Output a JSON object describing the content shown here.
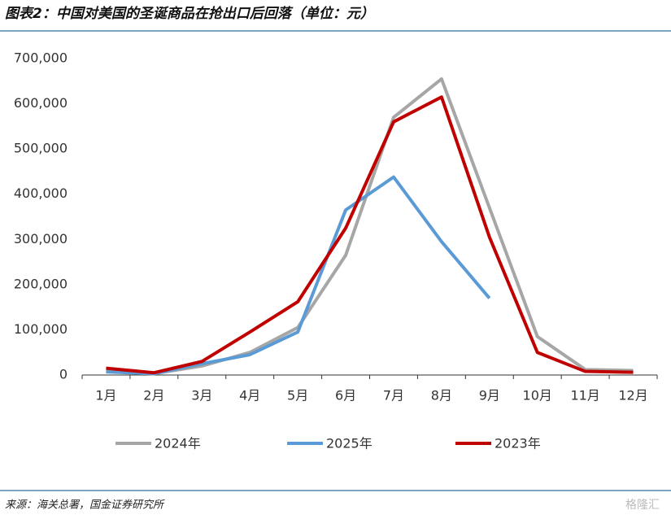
{
  "chart_data": {
    "type": "line",
    "title": "图表2：中国对美国的圣诞商品在抢出口后回落（单位：元）",
    "source": "来源：海关总署，国金证券研究所",
    "watermark": "格隆汇",
    "categories": [
      "1月",
      "2月",
      "3月",
      "4月",
      "5月",
      "6月",
      "7月",
      "8月",
      "9月",
      "10月",
      "11月",
      "12月"
    ],
    "series": [
      {
        "name": "2024年",
        "color": "#a6a6a6",
        "values": [
          8000,
          3000,
          20000,
          50000,
          105000,
          265000,
          570000,
          655000,
          370000,
          85000,
          12000,
          10000
        ]
      },
      {
        "name": "2025年",
        "color": "#5b9bd5",
        "values": [
          7000,
          3000,
          25000,
          45000,
          95000,
          365000,
          438000,
          295000,
          170000,
          null,
          null,
          null
        ]
      },
      {
        "name": "2023年",
        "color": "#c00000",
        "values": [
          15000,
          5000,
          30000,
          95000,
          162000,
          325000,
          560000,
          615000,
          305000,
          50000,
          8000,
          6000
        ]
      }
    ],
    "ylim": [
      0,
      700000
    ],
    "yticks": [
      0,
      {
        "value": 100000,
        "label": "100,000"
      },
      {
        "value": 200000,
        "label": "200,000"
      },
      {
        "value": 300000,
        "label": "300,000"
      },
      {
        "value": 400000,
        "label": "400,000"
      },
      {
        "value": 500000,
        "label": "500,000"
      },
      {
        "value": 600000,
        "label": "600,000"
      },
      {
        "value": 700000,
        "label": "700,000"
      }
    ],
    "legend": "bottom"
  }
}
